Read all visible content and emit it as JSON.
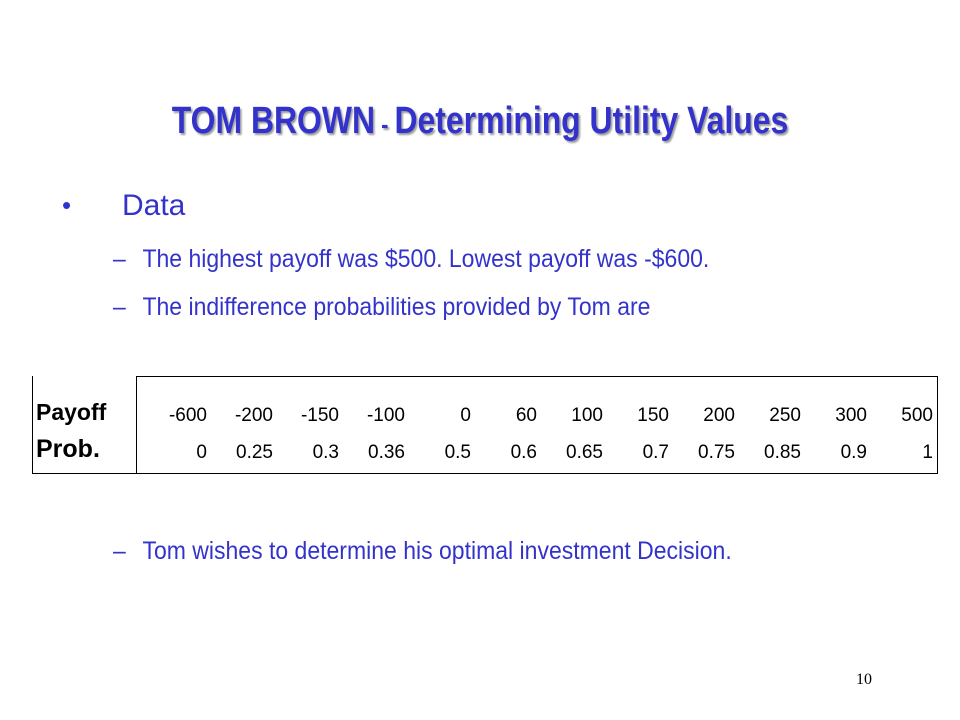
{
  "slide": {
    "title_main": "TOM BROWN",
    "title_sep": " - ",
    "title_rest": "Determining Utility Values",
    "bullet": "Data",
    "sub1": "The highest payoff was $500.  Lowest payoff was -$600.",
    "sub2": "The indifference probabilities provided by Tom are",
    "sub3": "Tom wishes to determine his optimal investment Decision.",
    "dash": "–",
    "bullet_symbol": "•",
    "page_number": "10",
    "accent_color": "#3333cc"
  },
  "table": {
    "row1_label": "Payoff",
    "row2_label": "Prob.",
    "payoffs": [
      "-600",
      "-200",
      "-150",
      "-100",
      "0",
      "60",
      "100",
      "150",
      "200",
      "250",
      "300",
      "500"
    ],
    "probs": [
      "0",
      "0.25",
      "0.3",
      "0.36",
      "0.5",
      "0.6",
      "0.65",
      "0.7",
      "0.75",
      "0.85",
      "0.9",
      "1"
    ]
  }
}
